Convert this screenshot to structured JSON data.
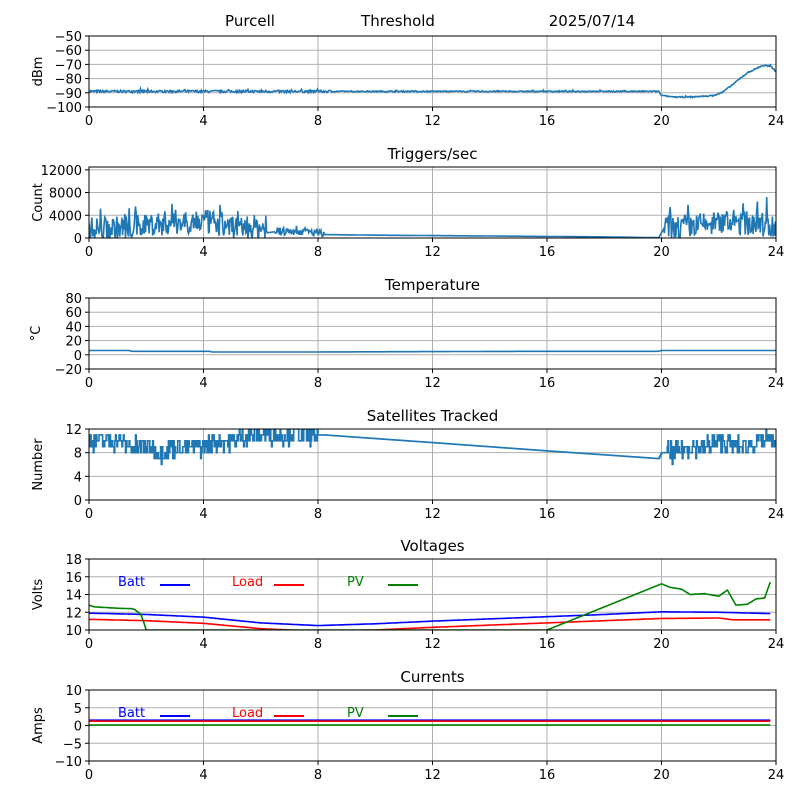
{
  "header": {
    "station": "Purcell",
    "mode": "Threshold",
    "date": "2025/07/14"
  },
  "chart_data": [
    {
      "type": "line",
      "title": "",
      "ylabel": "dBm",
      "xlim": [
        0,
        24
      ],
      "xticks": [
        0,
        4,
        8,
        12,
        16,
        20,
        24
      ],
      "ylim": [
        -100,
        -50
      ],
      "yticks": [
        -100,
        -90,
        -80,
        -70,
        -60,
        -50
      ],
      "grid": true,
      "series": [
        {
          "color": "#1f77b4",
          "noise": 0.4,
          "noise_segments": [
            [
              0,
              8.5,
              0.8
            ]
          ],
          "x": [
            0,
            1,
            2,
            4,
            6,
            8,
            12,
            16,
            19.9,
            20,
            20.5,
            21,
            21.8,
            22.1,
            22.5,
            22.8,
            23,
            23.2,
            23.5,
            23.8,
            24
          ],
          "y": [
            -89,
            -89,
            -89,
            -89,
            -89,
            -89,
            -89,
            -89,
            -89,
            -92,
            -93,
            -93,
            -92,
            -90,
            -84,
            -79,
            -76,
            -74,
            -71,
            -71,
            -75
          ]
        }
      ]
    },
    {
      "type": "line",
      "title": "Triggers/sec",
      "ylabel": "Count",
      "xlim": [
        0,
        24
      ],
      "xticks": [
        0,
        4,
        8,
        12,
        16,
        20,
        24
      ],
      "ylim": [
        0,
        12500
      ],
      "yticks": [
        0,
        4000,
        8000,
        12000
      ],
      "grid": true,
      "series": [
        {
          "color": "#1f77b4",
          "noise": 0,
          "noise_segments": [
            [
              0,
              6.2,
              2200
            ],
            [
              6.5,
              8.2,
              700
            ],
            [
              20.1,
              24,
              2200
            ]
          ],
          "x": [
            0,
            1,
            2,
            3,
            3.7,
            4.3,
            5,
            6.1,
            6.2,
            6.5,
            7.5,
            8.2,
            10,
            14,
            18,
            19.9,
            20.1,
            21,
            22,
            22.5,
            23.5,
            24
          ],
          "y": [
            1500,
            1700,
            2300,
            2800,
            3000,
            2700,
            2000,
            1800,
            900,
            1100,
            1200,
            600,
            500,
            350,
            200,
            50,
            1800,
            2100,
            2600,
            2800,
            2400,
            1800
          ]
        }
      ]
    },
    {
      "type": "line",
      "title": "Temperature",
      "ylabel": "°C",
      "xlim": [
        0,
        24
      ],
      "xticks": [
        0,
        4,
        8,
        12,
        16,
        20,
        24
      ],
      "ylim": [
        -20,
        80
      ],
      "yticks": [
        -20,
        0,
        20,
        40,
        60,
        80
      ],
      "grid": true,
      "series": [
        {
          "color": "#1f77b4",
          "noise": 0,
          "x": [
            0,
            1.4,
            1.5,
            4.2,
            4.3,
            8,
            12,
            16,
            19.9,
            20,
            24
          ],
          "y": [
            6,
            6,
            5,
            5,
            4,
            4,
            4.5,
            5,
            5,
            6,
            6
          ]
        }
      ]
    },
    {
      "type": "line",
      "title": "Satellites Tracked",
      "ylabel": "Number",
      "xlim": [
        0,
        24
      ],
      "xticks": [
        0,
        4,
        8,
        12,
        16,
        20,
        24
      ],
      "ylim": [
        0,
        12
      ],
      "yticks": [
        0,
        4,
        8,
        12
      ],
      "grid": true,
      "series": [
        {
          "color": "#1f77b4",
          "noise": 0,
          "noise_segments": [
            [
              0,
              8.0,
              1.6
            ],
            [
              20.2,
              24,
              1.6
            ]
          ],
          "step": true,
          "x": [
            0,
            0.5,
            1,
            1.5,
            2,
            2.5,
            3,
            3.5,
            4,
            4.5,
            5,
            5.5,
            6,
            6.5,
            7,
            7.5,
            8.2,
            12,
            16,
            19.9,
            20,
            20.5,
            21,
            21.5,
            22,
            22.5,
            23,
            23.5,
            24
          ],
          "y": [
            10,
            10,
            10,
            9,
            9,
            8,
            9,
            9,
            9,
            10,
            10,
            11,
            11,
            11,
            11,
            11,
            11,
            9.7,
            8.3,
            7,
            8,
            8,
            9,
            9,
            10,
            9,
            9,
            10,
            10
          ]
        }
      ]
    },
    {
      "type": "line",
      "title": "Voltages",
      "ylabel": "Volts",
      "xlim": [
        0,
        24
      ],
      "xticks": [
        0,
        4,
        8,
        12,
        16,
        20,
        24
      ],
      "ylim": [
        10,
        18
      ],
      "yticks": [
        10,
        12,
        14,
        16,
        18
      ],
      "grid": true,
      "legend": [
        "Batt",
        "Load",
        "PV"
      ],
      "series": [
        {
          "name": "Batt",
          "color": "#0000ff",
          "noise": 0,
          "x": [
            0,
            2,
            4,
            6,
            8,
            10,
            12,
            14,
            16,
            18,
            20,
            22,
            23.8
          ],
          "y": [
            11.9,
            11.75,
            11.45,
            10.8,
            10.5,
            10.7,
            11.0,
            11.25,
            11.5,
            11.75,
            12.05,
            12.0,
            11.85
          ]
        },
        {
          "name": "Load",
          "color": "#ff0000",
          "noise": 0,
          "x": [
            0,
            2,
            4,
            5,
            6,
            7,
            8,
            10,
            12,
            14,
            16,
            18,
            20,
            22,
            22.5,
            23.8
          ],
          "y": [
            11.2,
            11.05,
            10.75,
            10.45,
            10.15,
            10.0,
            9.9,
            10.0,
            10.3,
            10.55,
            10.8,
            11.05,
            11.3,
            11.35,
            11.15,
            11.15
          ]
        },
        {
          "name": "PV",
          "color": "#008000",
          "noise": 0,
          "x": [
            0,
            0.2,
            0.5,
            1,
            1.5,
            1.6,
            1.8,
            1.9,
            2.0,
            16,
            20,
            20.3,
            20.7,
            21,
            21.5,
            22,
            22.3,
            22.6,
            23,
            23.3,
            23.6,
            23.8
          ],
          "y": [
            12.8,
            12.6,
            12.55,
            12.45,
            12.4,
            12.3,
            11.8,
            11.0,
            10.0,
            10.0,
            15.2,
            14.8,
            14.6,
            14.0,
            14.1,
            13.8,
            14.5,
            12.8,
            12.9,
            13.5,
            13.6,
            15.4
          ]
        }
      ]
    },
    {
      "type": "line",
      "title": "Currents",
      "ylabel": "Amps",
      "xlim": [
        0,
        24
      ],
      "xticks": [
        0,
        4,
        8,
        12,
        16,
        20,
        24
      ],
      "ylim": [
        -10,
        10
      ],
      "yticks": [
        -10,
        -5,
        0,
        5,
        10
      ],
      "grid": true,
      "legend": [
        "Batt",
        "Load",
        "PV"
      ],
      "series": [
        {
          "name": "Batt",
          "color": "#0000ff",
          "noise": 0,
          "x": [
            0,
            23.8
          ],
          "y": [
            1.5,
            1.5
          ]
        },
        {
          "name": "Load",
          "color": "#ff0000",
          "noise": 0,
          "x": [
            0,
            23.8
          ],
          "y": [
            1.2,
            1.2
          ]
        },
        {
          "name": "PV",
          "color": "#008000",
          "noise": 0,
          "x": [
            0,
            23.8
          ],
          "y": [
            0.1,
            0.1
          ]
        }
      ]
    }
  ]
}
